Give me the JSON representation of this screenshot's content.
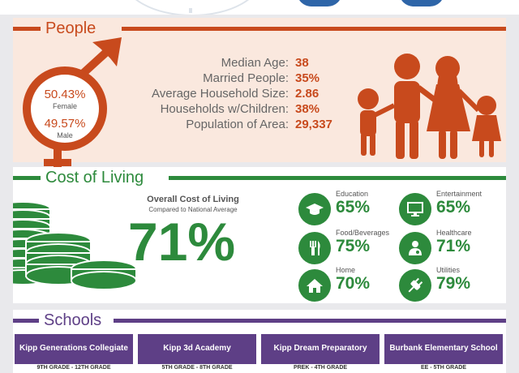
{
  "people": {
    "title": "People",
    "female_pct": "50.43%",
    "female_label": "Female",
    "male_pct": "49.57%",
    "male_label": "Male",
    "stats": [
      {
        "label": "Median Age:",
        "value": "38"
      },
      {
        "label": "Married People:",
        "value": "35%"
      },
      {
        "label": "Average Household Size:",
        "value": "2.86"
      },
      {
        "label": "Households w/Children:",
        "value": "38%"
      },
      {
        "label": "Population of Area:",
        "value": "29,337"
      }
    ],
    "icon": "family-icon"
  },
  "cost_of_living": {
    "title": "Cost of Living",
    "overall_title": "Overall Cost of Living",
    "overall_subtitle": "Compared to National Average",
    "overall_value": "71%",
    "icon": "money-stack-icon",
    "categories": [
      {
        "label": "Education",
        "value": "65%",
        "icon": "graduation-cap-icon"
      },
      {
        "label": "Entertainment",
        "value": "65%",
        "icon": "monitor-icon"
      },
      {
        "label": "Food/Beverages",
        "value": "75%",
        "icon": "utensils-icon"
      },
      {
        "label": "Healthcare",
        "value": "71%",
        "icon": "doctor-icon"
      },
      {
        "label": "Home",
        "value": "70%",
        "icon": "home-icon"
      },
      {
        "label": "Utilities",
        "value": "79%",
        "icon": "plug-icon"
      }
    ]
  },
  "schools": {
    "title": "Schools",
    "items": [
      {
        "name": "Kipp Generations Collegiate",
        "grades": "9TH GRADE - 12TH GRADE"
      },
      {
        "name": "Kipp 3d Academy",
        "grades": "5TH GRADE - 8TH GRADE"
      },
      {
        "name": "Kipp Dream Preparatory",
        "grades": "PREK - 4TH GRADE"
      },
      {
        "name": "Burbank Elementary School",
        "grades": "EE - 5TH GRADE"
      }
    ]
  },
  "colors": {
    "people_accent": "#c84a1d",
    "cost_accent": "#2d8a3c",
    "schools_accent": "#5e3f86",
    "top_pill": "#2e65a8"
  }
}
